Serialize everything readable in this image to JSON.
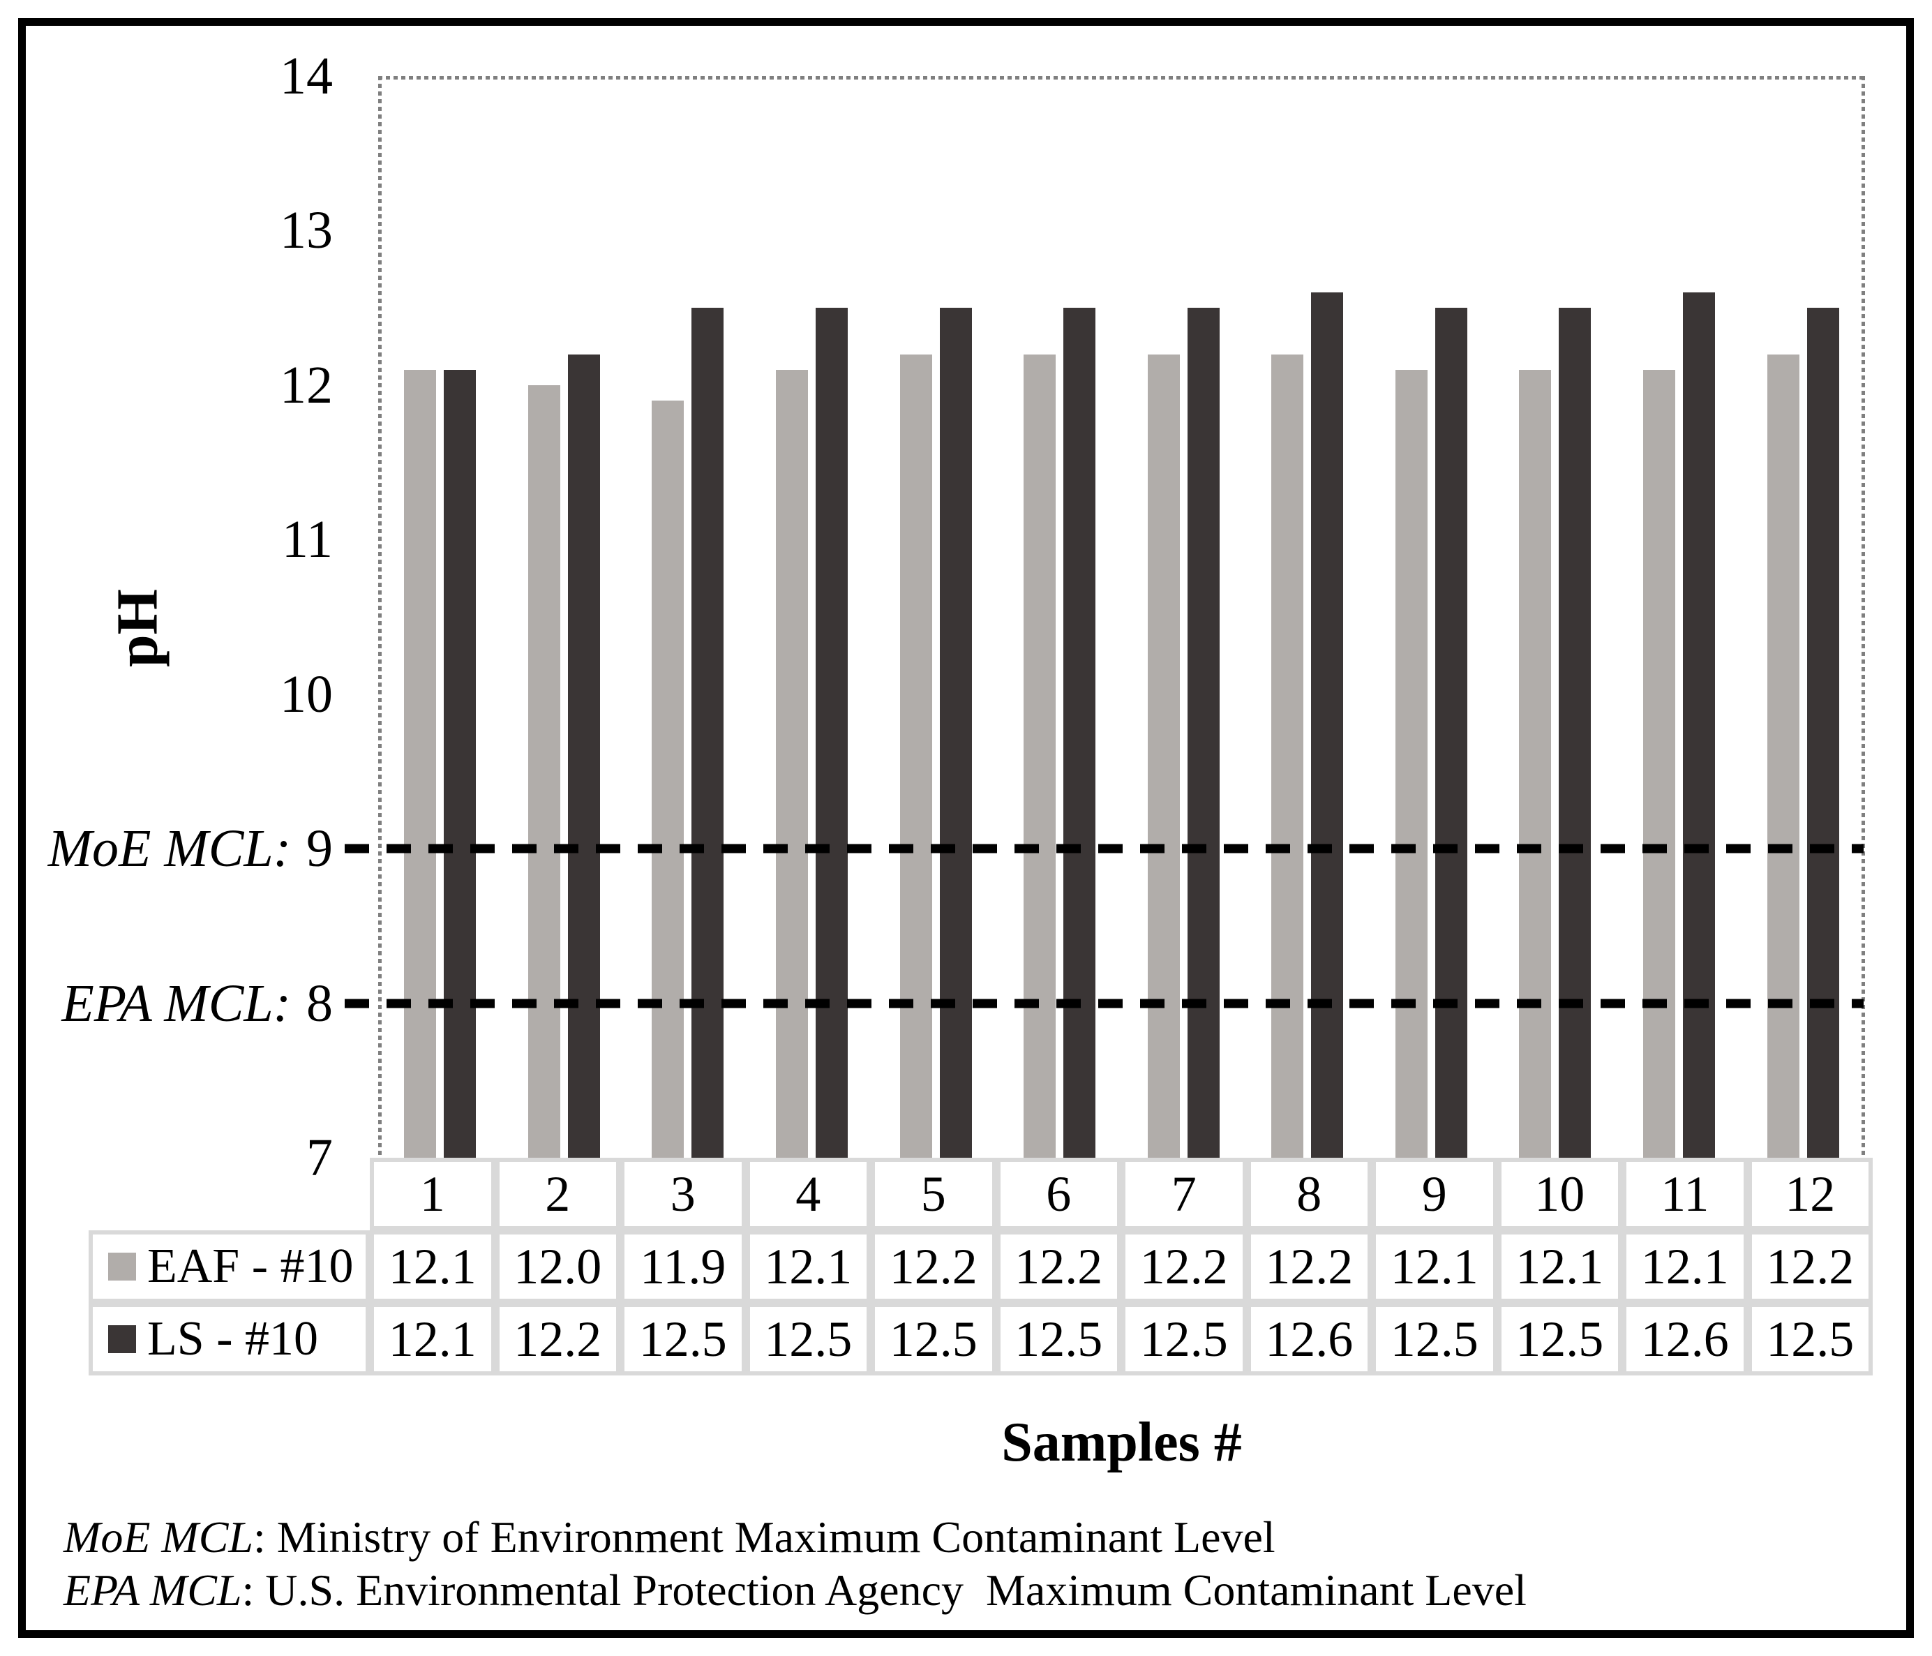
{
  "figure": {
    "background": "#ffffff",
    "frame_color": "#000000"
  },
  "chart_data": {
    "type": "bar",
    "title": "",
    "categories": [
      "1",
      "2",
      "3",
      "4",
      "5",
      "6",
      "7",
      "8",
      "9",
      "10",
      "11",
      "12"
    ],
    "series": [
      {
        "name": "EAF - #10",
        "color": "#b1adaa",
        "values": [
          12.1,
          12.0,
          11.9,
          12.1,
          12.2,
          12.2,
          12.2,
          12.2,
          12.1,
          12.1,
          12.1,
          12.2
        ]
      },
      {
        "name": "LS - #10",
        "color": "#3a3535",
        "values": [
          12.1,
          12.2,
          12.5,
          12.5,
          12.5,
          12.5,
          12.5,
          12.6,
          12.5,
          12.5,
          12.6,
          12.5
        ]
      }
    ],
    "xlabel": "Samples #",
    "ylabel": "pH",
    "ylim": [
      7,
      14
    ],
    "yticks": [
      {
        "value": 14,
        "prefix": ""
      },
      {
        "value": 13,
        "prefix": ""
      },
      {
        "value": 12,
        "prefix": ""
      },
      {
        "value": 11,
        "prefix": ""
      },
      {
        "value": 10,
        "prefix": ""
      },
      {
        "value": 9,
        "prefix": "MoE MCL:"
      },
      {
        "value": 8,
        "prefix": "EPA MCL:"
      },
      {
        "value": 7,
        "prefix": ""
      }
    ],
    "reference_lines": [
      {
        "name": "MoE MCL dashed line",
        "value": 9,
        "style": "dashed",
        "color": "#000000"
      },
      {
        "name": "EPA MCL dashed line",
        "value": 8,
        "style": "dashed",
        "color": "#000000"
      }
    ],
    "grid": false,
    "legend_position": "table-left",
    "plot_border": "dotted-gray",
    "value_format_decimals": 1
  },
  "colors": {
    "table_border": "#d9d9d9",
    "plot_border_dots": "#7f7f7f",
    "dashed_line": "#000000"
  },
  "footnotes": [
    {
      "term": "MoE MCL",
      "text": ": Ministry of Environment Maximum Contaminant Level"
    },
    {
      "term": "EPA MCL",
      "text": ": U.S. Environmental Protection Agency  Maximum Contaminant Level"
    }
  ]
}
